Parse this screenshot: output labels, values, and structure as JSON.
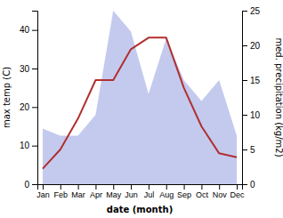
{
  "chart_data": {
    "type": "line",
    "categories": [
      "Jan",
      "Feb",
      "Mar",
      "Apr",
      "May",
      "Jun",
      "Jul",
      "Aug",
      "Sep",
      "Oct",
      "Nov",
      "Dec"
    ],
    "series": [
      {
        "type": "area",
        "axis": "y2",
        "color": "#b0b8e8",
        "values": [
          8,
          7,
          7,
          10,
          25,
          22,
          13,
          21,
          15,
          12,
          15,
          7
        ]
      },
      {
        "type": "line",
        "color": "#b03030",
        "values": [
          4,
          9,
          17,
          27,
          27,
          35,
          38,
          38,
          25,
          15,
          8,
          7
        ]
      }
    ],
    "xlabel": "date (month)",
    "ylabel": "max temp (C)",
    "y2label": "med. precipitation (kg/m2)",
    "ylim": [
      0,
      45
    ],
    "yticks": [
      0,
      10,
      20,
      30,
      40
    ],
    "y2lim": [
      0,
      25
    ],
    "y2ticks": [
      0,
      5,
      10,
      15,
      20,
      25
    ],
    "grid": false
  }
}
